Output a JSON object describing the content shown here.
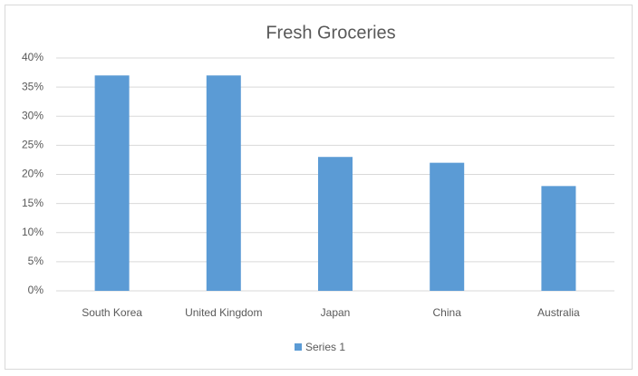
{
  "chart_data": {
    "type": "bar",
    "title": "Fresh Groceries",
    "categories": [
      "South Korea",
      "United Kingdom",
      "Japan",
      "China",
      "Australia"
    ],
    "series": [
      {
        "name": "Series 1",
        "color": "#5b9bd5",
        "values": [
          37,
          37,
          23,
          22,
          18
        ]
      }
    ],
    "ylim": [
      0,
      40
    ],
    "yticks": [
      {
        "value": 0,
        "label": "0%"
      },
      {
        "value": 5,
        "label": "5%"
      },
      {
        "value": 10,
        "label": "10%"
      },
      {
        "value": 15,
        "label": "15%"
      },
      {
        "value": 20,
        "label": "20%"
      },
      {
        "value": 25,
        "label": "25%"
      },
      {
        "value": 30,
        "label": "30%"
      },
      {
        "value": 35,
        "label": "35%"
      },
      {
        "value": 40,
        "label": "40%"
      }
    ],
    "grid": true,
    "legend": "bottom"
  }
}
